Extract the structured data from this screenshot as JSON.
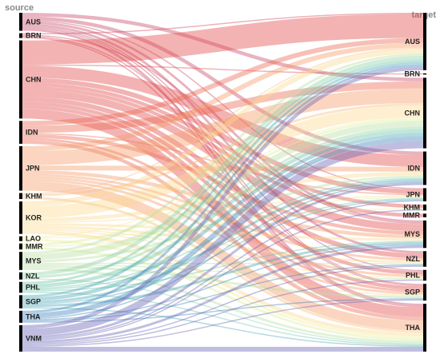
{
  "chart_data": {
    "type": "sankey",
    "left_title": "source",
    "right_title": "target",
    "sources": [
      {
        "name": "AUS",
        "color": "#c84a6a"
      },
      {
        "name": "BRN",
        "color": "#d5485b"
      },
      {
        "name": "CHN",
        "color": "#e34a4a"
      },
      {
        "name": "IDN",
        "color": "#ec6a50"
      },
      {
        "name": "JPN",
        "color": "#f59a6a"
      },
      {
        "name": "KHM",
        "color": "#f8bf80"
      },
      {
        "name": "KOR",
        "color": "#fbd98e"
      },
      {
        "name": "LAO",
        "color": "#f2ec95"
      },
      {
        "name": "MMR",
        "color": "#dceea0"
      },
      {
        "name": "MYS",
        "color": "#b9e0a2"
      },
      {
        "name": "NZL",
        "color": "#8fd2a6"
      },
      {
        "name": "PHL",
        "color": "#6cc3a8"
      },
      {
        "name": "SGP",
        "color": "#4ba6b6"
      },
      {
        "name": "THA",
        "color": "#3d83bd"
      },
      {
        "name": "VNM",
        "color": "#6a64b4"
      }
    ],
    "targets": [
      {
        "name": "AUS"
      },
      {
        "name": "BRN"
      },
      {
        "name": "CHN"
      },
      {
        "name": "IDN"
      },
      {
        "name": "JPN"
      },
      {
        "name": "KHM"
      },
      {
        "name": "MMR"
      },
      {
        "name": "MYS"
      },
      {
        "name": "NZL"
      },
      {
        "name": "PHL"
      },
      {
        "name": "SGP"
      },
      {
        "name": "THA"
      }
    ],
    "links": [
      [
        "AUS",
        "CHN",
        3
      ],
      [
        "AUS",
        "IDN",
        3
      ],
      [
        "AUS",
        "MYS",
        2
      ],
      [
        "AUS",
        "NZL",
        2
      ],
      [
        "AUS",
        "SGP",
        1
      ],
      [
        "AUS",
        "THA",
        2
      ],
      [
        "AUS",
        "JPN",
        1
      ],
      [
        "AUS",
        "PHL",
        1
      ],
      [
        "BRN",
        "AUS",
        1
      ],
      [
        "BRN",
        "SGP",
        1
      ],
      [
        "BRN",
        "MYS",
        1
      ],
      [
        "BRN",
        "THA",
        1
      ],
      [
        "CHN",
        "AUS",
        20
      ],
      [
        "CHN",
        "IDN",
        10
      ],
      [
        "CHN",
        "THA",
        8
      ],
      [
        "CHN",
        "MYS",
        6
      ],
      [
        "CHN",
        "JPN",
        4
      ],
      [
        "CHN",
        "NZL",
        4
      ],
      [
        "CHN",
        "MMR",
        3
      ],
      [
        "CHN",
        "KHM",
        3
      ],
      [
        "CHN",
        "PHL",
        3
      ],
      [
        "CHN",
        "SGP",
        3
      ],
      [
        "CHN",
        "BRN",
        1
      ],
      [
        "IDN",
        "CHN",
        6
      ],
      [
        "IDN",
        "AUS",
        4
      ],
      [
        "IDN",
        "THA",
        3
      ],
      [
        "IDN",
        "MYS",
        3
      ],
      [
        "IDN",
        "SGP",
        2
      ],
      [
        "IDN",
        "JPN",
        1
      ],
      [
        "JPN",
        "CHN",
        12
      ],
      [
        "JPN",
        "THA",
        8
      ],
      [
        "JPN",
        "AUS",
        4
      ],
      [
        "JPN",
        "IDN",
        4
      ],
      [
        "JPN",
        "MYS",
        3
      ],
      [
        "JPN",
        "NZL",
        2
      ],
      [
        "JPN",
        "PHL",
        2
      ],
      [
        "JPN",
        "SGP",
        2
      ],
      [
        "KHM",
        "CHN",
        2
      ],
      [
        "KHM",
        "THA",
        2
      ],
      [
        "KHM",
        "AUS",
        1
      ],
      [
        "KOR",
        "CHN",
        10
      ],
      [
        "KOR",
        "AUS",
        4
      ],
      [
        "KOR",
        "IDN",
        3
      ],
      [
        "KOR",
        "THA",
        3
      ],
      [
        "KOR",
        "NZL",
        2
      ],
      [
        "KOR",
        "MYS",
        2
      ],
      [
        "KOR",
        "PHL",
        1
      ],
      [
        "KOR",
        "JPN",
        1
      ],
      [
        "KOR",
        "SGP",
        1
      ],
      [
        "LAO",
        "CHN",
        1
      ],
      [
        "LAO",
        "THA",
        2
      ],
      [
        "LAO",
        "KHM",
        1
      ],
      [
        "MMR",
        "CHN",
        2
      ],
      [
        "MMR",
        "THA",
        2
      ],
      [
        "MMR",
        "JPN",
        1
      ],
      [
        "MYS",
        "CHN",
        5
      ],
      [
        "MYS",
        "AUS",
        2
      ],
      [
        "MYS",
        "IDN",
        2
      ],
      [
        "MYS",
        "THA",
        2
      ],
      [
        "MYS",
        "SGP",
        2
      ],
      [
        "MYS",
        "NZL",
        1
      ],
      [
        "MYS",
        "PHL",
        1
      ],
      [
        "NZL",
        "AUS",
        3
      ],
      [
        "NZL",
        "CHN",
        2
      ],
      [
        "NZL",
        "THA",
        1
      ],
      [
        "PHL",
        "CHN",
        3
      ],
      [
        "PHL",
        "AUS",
        2
      ],
      [
        "PHL",
        "IDN",
        1
      ],
      [
        "PHL",
        "THA",
        1
      ],
      [
        "PHL",
        "MYS",
        1
      ],
      [
        "PHL",
        "JPN",
        1
      ],
      [
        "SGP",
        "CHN",
        3
      ],
      [
        "SGP",
        "AUS",
        2
      ],
      [
        "SGP",
        "MYS",
        2
      ],
      [
        "SGP",
        "IDN",
        2
      ],
      [
        "SGP",
        "THA",
        1
      ],
      [
        "SGP",
        "JPN",
        1
      ],
      [
        "THA",
        "CHN",
        4
      ],
      [
        "THA",
        "AUS",
        2
      ],
      [
        "THA",
        "MYS",
        1
      ],
      [
        "THA",
        "IDN",
        1
      ],
      [
        "THA",
        "SGP",
        1
      ],
      [
        "THA",
        "NZL",
        1
      ],
      [
        "VNM",
        "CHN",
        6
      ],
      [
        "VNM",
        "THA",
        4
      ],
      [
        "VNM",
        "AUS",
        3
      ],
      [
        "VNM",
        "IDN",
        2
      ],
      [
        "VNM",
        "MYS",
        2
      ],
      [
        "VNM",
        "NZL",
        1
      ],
      [
        "VNM",
        "PHL",
        1
      ],
      [
        "VNM",
        "SGP",
        1
      ],
      [
        "VNM",
        "JPN",
        1
      ],
      [
        "VNM",
        "KHM",
        1
      ]
    ]
  }
}
